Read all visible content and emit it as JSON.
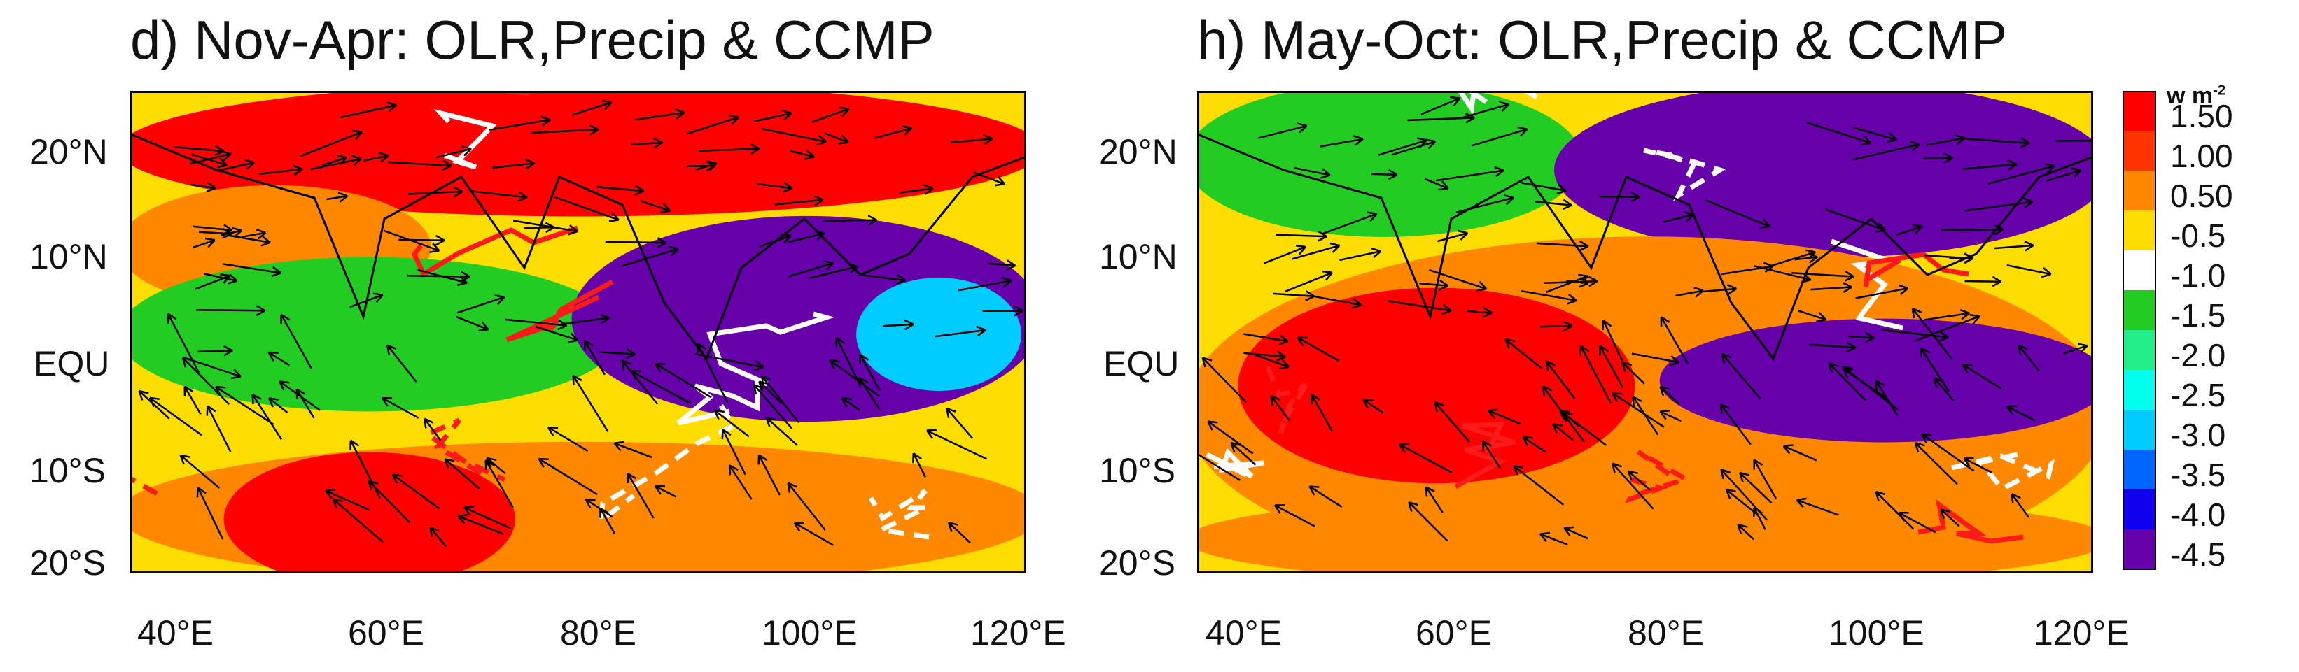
{
  "chart_data": [
    {
      "type": "heatmap",
      "panel": "d",
      "title": "d) Nov-Apr: OLR,Precip & CCMP",
      "x_ticks": [
        "40°E",
        "60°E",
        "80°E",
        "100°E",
        "120°E"
      ],
      "y_ticks": [
        "20°N",
        "10°N",
        "EQU",
        "10°S",
        "20°S"
      ],
      "xlim": [
        35,
        120
      ],
      "ylim": [
        -22,
        25
      ],
      "regions": [
        {
          "lon": [
            35,
            120
          ],
          "lat": [
            14,
            25
          ],
          "value": 1.5
        },
        {
          "lon": [
            35,
            62
          ],
          "lat": [
            5,
            15
          ],
          "value": 0.5
        },
        {
          "lon": [
            35,
            80
          ],
          "lat": [
            -5,
            8
          ],
          "value": -1.5
        },
        {
          "lon": [
            78,
            120
          ],
          "lat": [
            -6,
            12
          ],
          "value": -4.5
        },
        {
          "lon": [
            105,
            118
          ],
          "lat": [
            -3,
            6
          ],
          "value": -3.0
        },
        {
          "lon": [
            35,
            120
          ],
          "lat": [
            -22,
            -10
          ],
          "value": 0.5
        },
        {
          "lon": [
            45,
            70
          ],
          "lat": [
            -22,
            -11
          ],
          "value": 1.5
        }
      ]
    },
    {
      "type": "heatmap",
      "panel": "h",
      "title": "h) May-Oct: OLR,Precip & CCMP",
      "x_ticks": [
        "40°E",
        "60°E",
        "80°E",
        "100°E",
        "120°E"
      ],
      "y_ticks": [
        "20°N",
        "10°N",
        "EQU",
        "10°S",
        "20°S"
      ],
      "xlim": [
        35,
        120
      ],
      "ylim": [
        -22,
        25
      ],
      "regions": [
        {
          "lon": [
            35,
            70
          ],
          "lat": [
            12,
            25
          ],
          "value": -1.5
        },
        {
          "lon": [
            70,
            120
          ],
          "lat": [
            10,
            25
          ],
          "value": -4.5
        },
        {
          "lon": [
            35,
            120
          ],
          "lat": [
            -22,
            10
          ],
          "value": 0.5
        },
        {
          "lon": [
            40,
            75
          ],
          "lat": [
            -12,
            5
          ],
          "value": 1.5
        },
        {
          "lon": [
            80,
            120
          ],
          "lat": [
            -8,
            2
          ],
          "value": -4.5
        },
        {
          "lon": [
            35,
            120
          ],
          "lat": [
            -22,
            -15
          ],
          "value": 0.5
        }
      ]
    }
  ],
  "colorbar": {
    "units_label": "w m",
    "units_exponent": "-2",
    "levels": [
      "1.50",
      "1.00",
      "0.50",
      "-0.5",
      "-1.0",
      "-1.5",
      "-2.0",
      "-2.5",
      "-3.0",
      "-3.5",
      "-4.0",
      "-4.5"
    ],
    "colors": [
      "#ff0000",
      "#ff3300",
      "#ff8800",
      "#ffdd00",
      "#ffffff",
      "#22cc22",
      "#22ee88",
      "#00ffee",
      "#00ccff",
      "#0066ff",
      "#1100ee",
      "#6600aa"
    ]
  }
}
